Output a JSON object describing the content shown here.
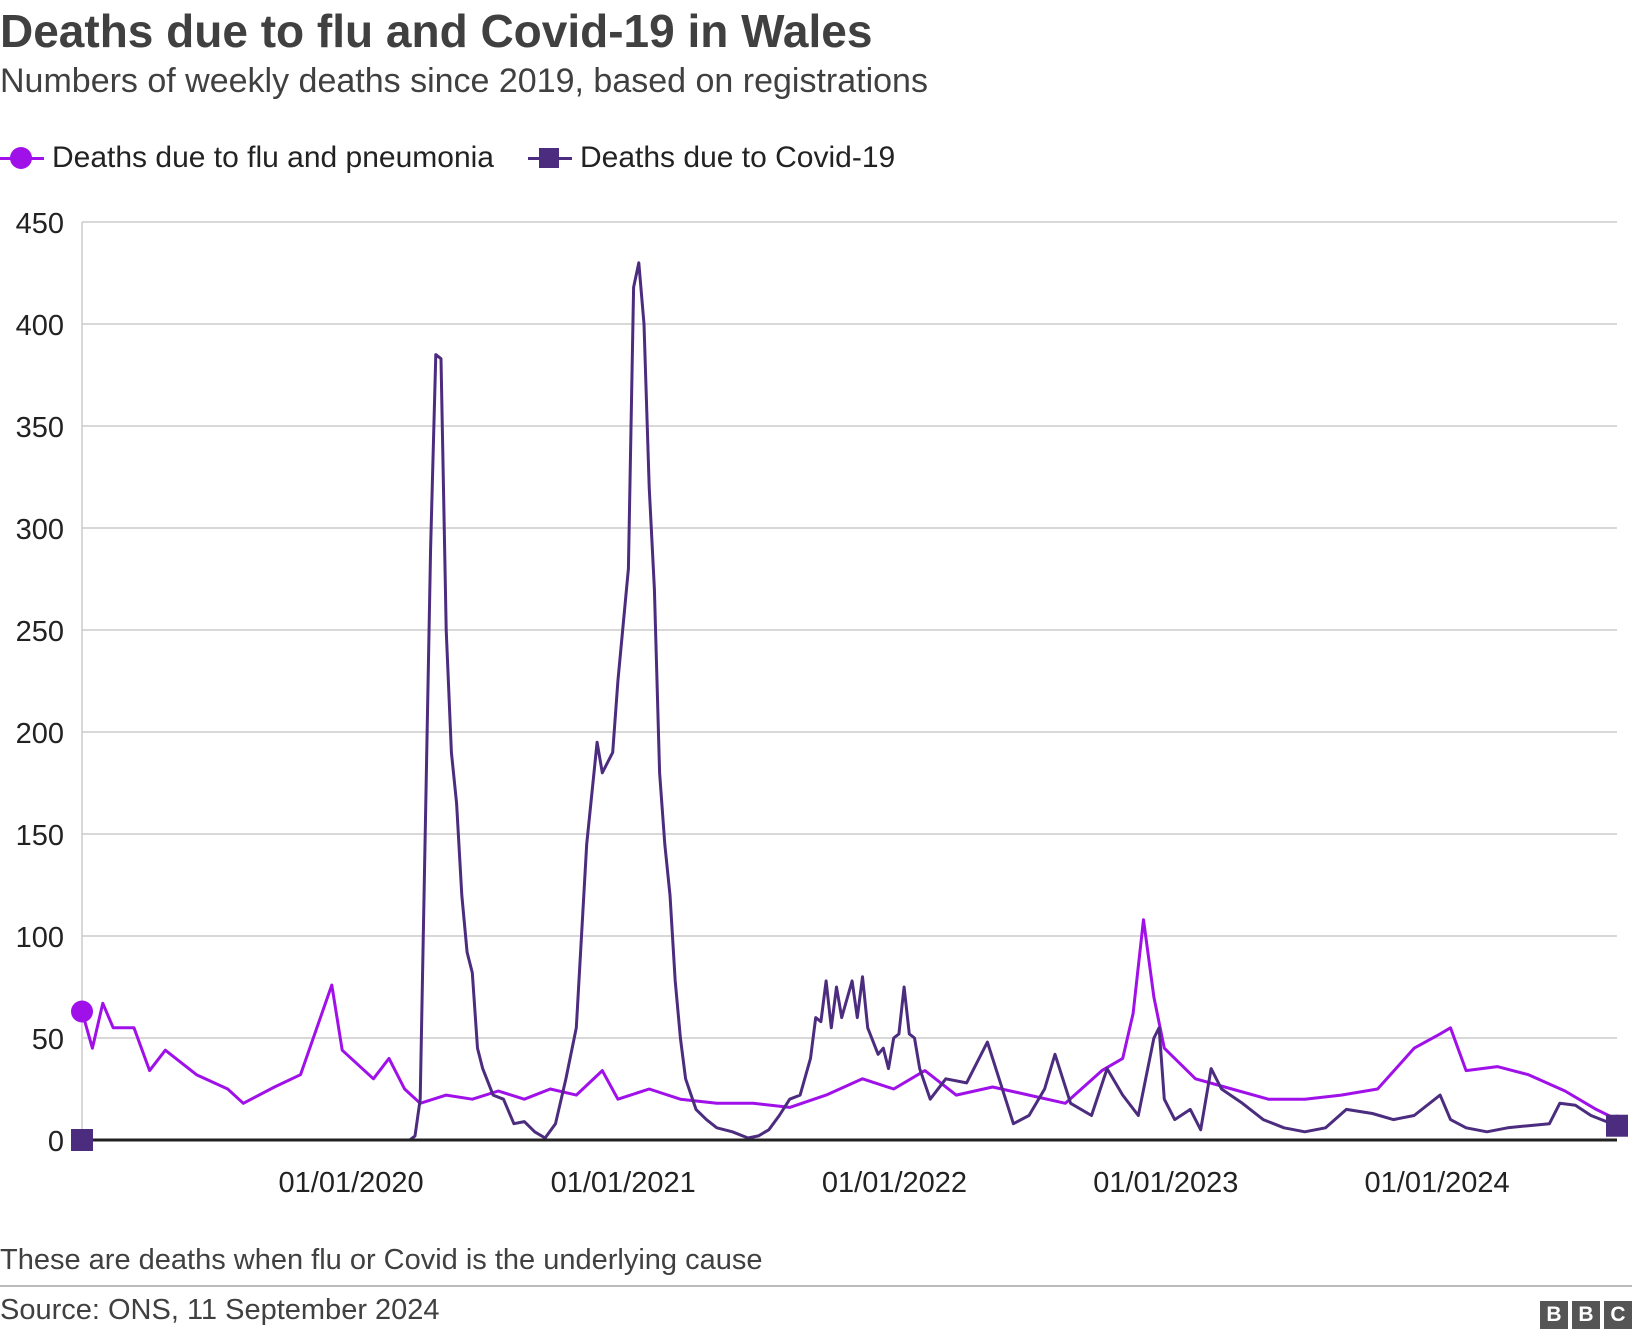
{
  "chart_data": {
    "type": "line",
    "title": "Deaths due to flu and Covid-19 in Wales",
    "subtitle": "Numbers of weekly deaths since 2019, based on registrations",
    "ylim": [
      0,
      450
    ],
    "yticks": [
      0,
      50,
      100,
      150,
      200,
      250,
      300,
      350,
      400,
      450
    ],
    "xlim": [
      "2019-01-04",
      "2024-08-30"
    ],
    "xticks": [
      "2020-01-01",
      "2021-01-01",
      "2022-01-01",
      "2023-01-01",
      "2024-01-01"
    ],
    "xtick_labels": [
      "01/01/2020",
      "01/01/2021",
      "01/01/2022",
      "01/01/2023",
      "01/01/2024"
    ],
    "grid": true,
    "legend_position": "top-left",
    "series": [
      {
        "name": "Deaths due to flu and pneumonia",
        "color": "#a010e8",
        "marker": "circle",
        "points": [
          [
            "2019-01-04",
            63
          ],
          [
            "2019-01-18",
            45
          ],
          [
            "2019-02-01",
            67
          ],
          [
            "2019-02-15",
            55
          ],
          [
            "2019-03-15",
            55
          ],
          [
            "2019-04-05",
            34
          ],
          [
            "2019-04-26",
            44
          ],
          [
            "2019-06-07",
            32
          ],
          [
            "2019-07-19",
            25
          ],
          [
            "2019-08-09",
            18
          ],
          [
            "2019-09-20",
            26
          ],
          [
            "2019-10-25",
            32
          ],
          [
            "2019-12-06",
            76
          ],
          [
            "2019-12-20",
            44
          ],
          [
            "2020-01-31",
            30
          ],
          [
            "2020-02-21",
            40
          ],
          [
            "2020-03-13",
            25
          ],
          [
            "2020-04-03",
            18
          ],
          [
            "2020-05-08",
            22
          ],
          [
            "2020-06-12",
            20
          ],
          [
            "2020-07-17",
            24
          ],
          [
            "2020-08-21",
            20
          ],
          [
            "2020-09-25",
            25
          ],
          [
            "2020-10-30",
            22
          ],
          [
            "2020-12-04",
            34
          ],
          [
            "2020-12-25",
            20
          ],
          [
            "2021-02-05",
            25
          ],
          [
            "2021-03-19",
            20
          ],
          [
            "2021-05-07",
            18
          ],
          [
            "2021-06-25",
            18
          ],
          [
            "2021-08-13",
            16
          ],
          [
            "2021-10-01",
            22
          ],
          [
            "2021-11-19",
            30
          ],
          [
            "2021-12-31",
            25
          ],
          [
            "2022-02-11",
            34
          ],
          [
            "2022-03-25",
            22
          ],
          [
            "2022-05-13",
            26
          ],
          [
            "2022-07-01",
            22
          ],
          [
            "2022-08-19",
            18
          ],
          [
            "2022-10-07",
            34
          ],
          [
            "2022-11-04",
            40
          ],
          [
            "2022-11-18",
            62
          ],
          [
            "2022-12-02",
            108
          ],
          [
            "2022-12-16",
            70
          ],
          [
            "2022-12-30",
            45
          ],
          [
            "2023-02-10",
            30
          ],
          [
            "2023-03-31",
            25
          ],
          [
            "2023-05-19",
            20
          ],
          [
            "2023-07-07",
            20
          ],
          [
            "2023-08-25",
            22
          ],
          [
            "2023-10-13",
            25
          ],
          [
            "2023-12-01",
            45
          ],
          [
            "2024-01-05",
            52
          ],
          [
            "2024-01-19",
            55
          ],
          [
            "2024-02-09",
            34
          ],
          [
            "2024-03-22",
            36
          ],
          [
            "2024-05-03",
            32
          ],
          [
            "2024-06-21",
            24
          ],
          [
            "2024-08-02",
            15
          ],
          [
            "2024-08-30",
            10
          ]
        ]
      },
      {
        "name": "Deaths due to Covid-19",
        "color": "#4c2c7e",
        "marker": "square",
        "points": [
          [
            "2019-01-04",
            0
          ],
          [
            "2020-03-20",
            0
          ],
          [
            "2020-03-27",
            2
          ],
          [
            "2020-04-03",
            20
          ],
          [
            "2020-04-17",
            290
          ],
          [
            "2020-04-24",
            385
          ],
          [
            "2020-05-01",
            383
          ],
          [
            "2020-05-08",
            250
          ],
          [
            "2020-05-15",
            190
          ],
          [
            "2020-05-22",
            165
          ],
          [
            "2020-05-29",
            120
          ],
          [
            "2020-06-05",
            92
          ],
          [
            "2020-06-12",
            82
          ],
          [
            "2020-06-19",
            45
          ],
          [
            "2020-06-26",
            35
          ],
          [
            "2020-07-10",
            22
          ],
          [
            "2020-07-24",
            20
          ],
          [
            "2020-08-07",
            8
          ],
          [
            "2020-08-21",
            9
          ],
          [
            "2020-09-04",
            4
          ],
          [
            "2020-09-18",
            1
          ],
          [
            "2020-10-02",
            8
          ],
          [
            "2020-10-16",
            30
          ],
          [
            "2020-10-30",
            55
          ],
          [
            "2020-11-13",
            145
          ],
          [
            "2020-11-27",
            195
          ],
          [
            "2020-12-04",
            180
          ],
          [
            "2020-12-18",
            190
          ],
          [
            "2020-12-25",
            225
          ],
          [
            "2021-01-08",
            280
          ],
          [
            "2021-01-15",
            418
          ],
          [
            "2021-01-22",
            430
          ],
          [
            "2021-01-29",
            400
          ],
          [
            "2021-02-05",
            320
          ],
          [
            "2021-02-12",
            270
          ],
          [
            "2021-02-19",
            180
          ],
          [
            "2021-02-26",
            145
          ],
          [
            "2021-03-05",
            120
          ],
          [
            "2021-03-12",
            78
          ],
          [
            "2021-03-19",
            50
          ],
          [
            "2021-03-26",
            30
          ],
          [
            "2021-04-09",
            15
          ],
          [
            "2021-04-23",
            10
          ],
          [
            "2021-05-07",
            6
          ],
          [
            "2021-05-28",
            4
          ],
          [
            "2021-06-18",
            1
          ],
          [
            "2021-07-02",
            2
          ],
          [
            "2021-07-16",
            5
          ],
          [
            "2021-07-30",
            12
          ],
          [
            "2021-08-13",
            20
          ],
          [
            "2021-08-27",
            22
          ],
          [
            "2021-09-10",
            40
          ],
          [
            "2021-09-17",
            60
          ],
          [
            "2021-09-24",
            58
          ],
          [
            "2021-10-01",
            78
          ],
          [
            "2021-10-08",
            55
          ],
          [
            "2021-10-15",
            75
          ],
          [
            "2021-10-22",
            60
          ],
          [
            "2021-11-05",
            78
          ],
          [
            "2021-11-12",
            60
          ],
          [
            "2021-11-19",
            80
          ],
          [
            "2021-11-26",
            55
          ],
          [
            "2021-12-10",
            42
          ],
          [
            "2021-12-17",
            45
          ],
          [
            "2021-12-24",
            35
          ],
          [
            "2021-12-31",
            50
          ],
          [
            "2022-01-07",
            52
          ],
          [
            "2022-01-14",
            75
          ],
          [
            "2022-01-21",
            52
          ],
          [
            "2022-01-28",
            50
          ],
          [
            "2022-02-04",
            35
          ],
          [
            "2022-02-18",
            20
          ],
          [
            "2022-03-11",
            30
          ],
          [
            "2022-04-08",
            28
          ],
          [
            "2022-05-06",
            48
          ],
          [
            "2022-05-20",
            32
          ],
          [
            "2022-06-10",
            8
          ],
          [
            "2022-07-01",
            12
          ],
          [
            "2022-07-22",
            25
          ],
          [
            "2022-08-05",
            42
          ],
          [
            "2022-08-26",
            18
          ],
          [
            "2022-09-23",
            12
          ],
          [
            "2022-10-14",
            35
          ],
          [
            "2022-11-04",
            22
          ],
          [
            "2022-11-25",
            12
          ],
          [
            "2022-12-16",
            50
          ],
          [
            "2022-12-23",
            55
          ],
          [
            "2022-12-30",
            20
          ],
          [
            "2023-01-13",
            10
          ],
          [
            "2023-02-03",
            15
          ],
          [
            "2023-02-17",
            5
          ],
          [
            "2023-03-03",
            35
          ],
          [
            "2023-03-17",
            25
          ],
          [
            "2023-04-14",
            18
          ],
          [
            "2023-05-12",
            10
          ],
          [
            "2023-06-09",
            6
          ],
          [
            "2023-07-07",
            4
          ],
          [
            "2023-08-04",
            6
          ],
          [
            "2023-09-01",
            15
          ],
          [
            "2023-10-06",
            13
          ],
          [
            "2023-11-03",
            10
          ],
          [
            "2023-12-01",
            12
          ],
          [
            "2024-01-05",
            22
          ],
          [
            "2024-01-19",
            10
          ],
          [
            "2024-02-09",
            6
          ],
          [
            "2024-03-08",
            4
          ],
          [
            "2024-04-05",
            6
          ],
          [
            "2024-05-03",
            7
          ],
          [
            "2024-05-31",
            8
          ],
          [
            "2024-06-14",
            18
          ],
          [
            "2024-07-05",
            17
          ],
          [
            "2024-07-26",
            12
          ],
          [
            "2024-08-09",
            10
          ],
          [
            "2024-08-30",
            7
          ]
        ]
      }
    ],
    "note": "These are deaths when flu or Covid is the underlying cause",
    "source": "Source: ONS, 11 September 2024"
  },
  "branding": {
    "letters": [
      "B",
      "B",
      "C"
    ]
  }
}
